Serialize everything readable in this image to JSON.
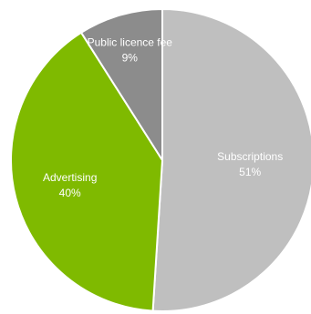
{
  "chart_data": {
    "type": "pie",
    "title": "",
    "categories": [
      "Subscriptions",
      "Advertising",
      "Public licence fee"
    ],
    "values": [
      51,
      40,
      9
    ],
    "value_labels": [
      "51%",
      "40%",
      "9%"
    ],
    "colors": [
      "#bfbfbf",
      "#7fba00",
      "#8c8c8c"
    ],
    "start": "12 o'clock",
    "direction": "clockwise",
    "labels_position": "inside",
    "legend": "none"
  }
}
